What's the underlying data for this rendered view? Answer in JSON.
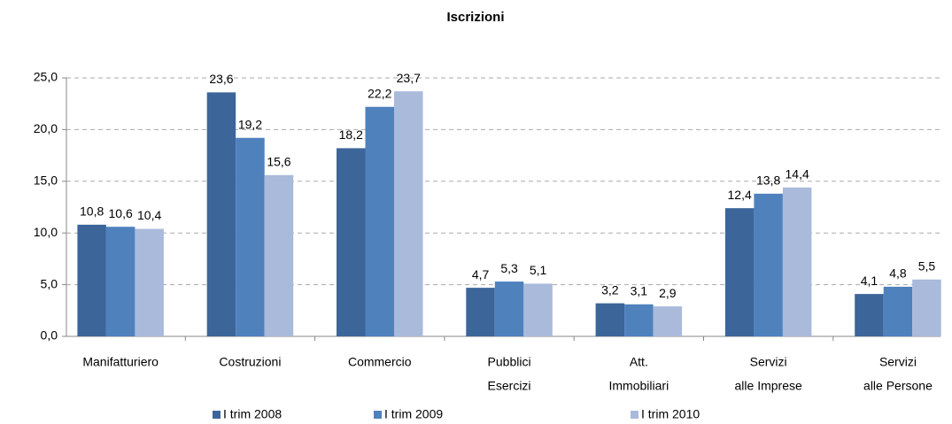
{
  "chart_data": {
    "type": "bar",
    "title": "Iscrizioni",
    "categories": [
      [
        "Manifatturiero"
      ],
      [
        "Costruzioni"
      ],
      [
        "Commercio"
      ],
      [
        "Pubblici",
        "Esercizi"
      ],
      [
        "Att.",
        "Immobiliari"
      ],
      [
        "Servizi",
        "alle Imprese"
      ],
      [
        "Servizi",
        "alle Persone"
      ]
    ],
    "series": [
      {
        "name": "I trim 2008",
        "color": "#3c6699",
        "values": [
          10.8,
          23.6,
          18.2,
          4.7,
          3.2,
          12.4,
          4.1
        ],
        "value_labels": [
          "10,8",
          "23,6",
          "18,2",
          "4,7",
          "3,2",
          "12,4",
          "4,1"
        ]
      },
      {
        "name": "I trim 2009",
        "color": "#4f81bd",
        "values": [
          10.6,
          19.2,
          22.2,
          5.3,
          3.1,
          13.8,
          4.8
        ],
        "value_labels": [
          "10,6",
          "19,2",
          "22,2",
          "5,3",
          "3,1",
          "13,8",
          "4,8"
        ]
      },
      {
        "name": "I trim 2010",
        "color": "#a9badb",
        "values": [
          10.4,
          15.6,
          23.7,
          5.1,
          2.9,
          14.4,
          5.5
        ],
        "value_labels": [
          "10,4",
          "15,6",
          "23,7",
          "5,1",
          "2,9",
          "14,4",
          "5,5"
        ]
      }
    ],
    "ylim": [
      0,
      25
    ],
    "yticks": [
      {
        "value": 0,
        "label": "0,0"
      },
      {
        "value": 5,
        "label": "5,0"
      },
      {
        "value": 10,
        "label": "10,0"
      },
      {
        "value": 15,
        "label": "15,0"
      },
      {
        "value": 20,
        "label": "20,0"
      },
      {
        "value": 25,
        "label": "25,0"
      }
    ],
    "grid": true,
    "legend": "bottom"
  }
}
